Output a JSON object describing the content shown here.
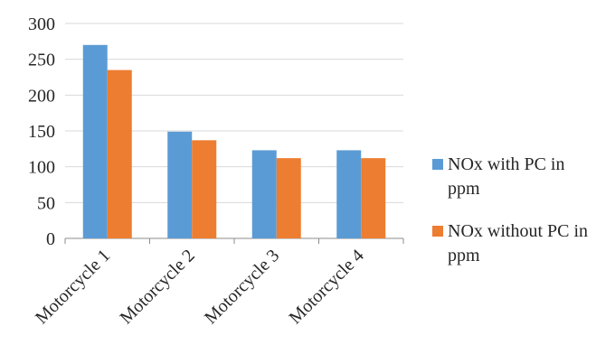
{
  "chart_data": {
    "type": "bar",
    "title": "",
    "xlabel": "",
    "ylabel": "",
    "categories": [
      "Motorcycle 1",
      "Motorcycle 2",
      "Motorcycle 3",
      "Motorcycle 4"
    ],
    "series": [
      {
        "name": "NOx with PC in ppm",
        "color": "#5B9BD5",
        "values": [
          270,
          149,
          123,
          123
        ]
      },
      {
        "name": "NOx without PC in ppm",
        "color": "#ED7D31",
        "values": [
          235,
          137,
          112,
          112
        ]
      }
    ],
    "ylim": [
      0,
      300
    ],
    "yticks": [
      0,
      50,
      100,
      150,
      200,
      250,
      300
    ],
    "grid": true,
    "legend": "right",
    "colors": {
      "gridline": "#D9D9D9",
      "axis": "#8C8C8C"
    }
  }
}
